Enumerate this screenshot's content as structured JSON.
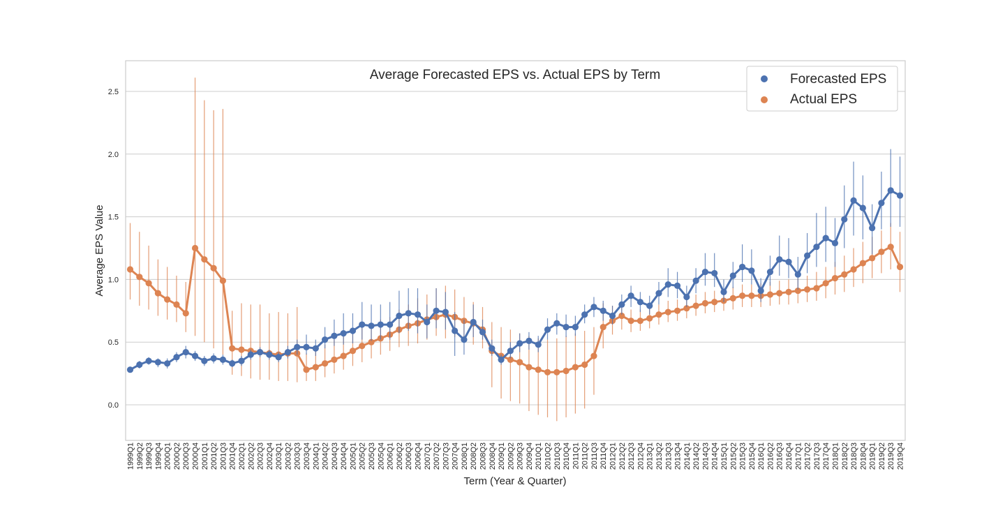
{
  "chart_data": {
    "type": "line",
    "title": "Average Forecasted EPS vs. Actual EPS by Term",
    "xlabel": "Term (Year & Quarter)",
    "ylabel": "Average EPS Value",
    "ylim": [
      -0.28,
      2.75
    ],
    "yticks": [
      0.0,
      0.5,
      1.0,
      1.5,
      2.0,
      2.5
    ],
    "ytick_labels": [
      "0.0",
      "0.5",
      "1.0",
      "1.5",
      "2.0",
      "2.5"
    ],
    "grid": true,
    "legend_position": "top-right",
    "categories": [
      "1999Q1",
      "1999Q2",
      "1999Q3",
      "1999Q4",
      "2000Q1",
      "2000Q2",
      "2000Q3",
      "2000Q4",
      "2001Q1",
      "2001Q2",
      "2001Q3",
      "2001Q4",
      "2002Q1",
      "2002Q2",
      "2002Q3",
      "2002Q4",
      "2003Q1",
      "2003Q2",
      "2003Q3",
      "2003Q4",
      "2004Q1",
      "2004Q2",
      "2004Q3",
      "2004Q4",
      "2005Q1",
      "2005Q2",
      "2005Q3",
      "2005Q4",
      "2006Q1",
      "2006Q2",
      "2006Q3",
      "2006Q4",
      "2007Q1",
      "2007Q2",
      "2007Q3",
      "2007Q4",
      "2008Q1",
      "2008Q2",
      "2008Q3",
      "2008Q4",
      "2009Q1",
      "2009Q2",
      "2009Q3",
      "2009Q4",
      "2010Q1",
      "2010Q2",
      "2010Q3",
      "2010Q4",
      "2011Q1",
      "2011Q2",
      "2011Q3",
      "2011Q4",
      "2012Q1",
      "2012Q2",
      "2012Q3",
      "2012Q4",
      "2013Q1",
      "2013Q2",
      "2013Q3",
      "2013Q4",
      "2014Q1",
      "2014Q2",
      "2014Q3",
      "2014Q4",
      "2015Q1",
      "2015Q2",
      "2015Q3",
      "2015Q4",
      "2016Q1",
      "2016Q2",
      "2016Q3",
      "2016Q4",
      "2017Q1",
      "2017Q2",
      "2017Q3",
      "2017Q4",
      "2018Q1",
      "2018Q2",
      "2018Q3",
      "2018Q4",
      "2019Q1",
      "2019Q2",
      "2019Q3",
      "2019Q4"
    ],
    "series": [
      {
        "name": "Forecasted EPS",
        "color": "#4c72b0",
        "values": [
          0.28,
          0.32,
          0.35,
          0.34,
          0.33,
          0.38,
          0.42,
          0.39,
          0.35,
          0.37,
          0.36,
          0.33,
          0.35,
          0.4,
          0.42,
          0.4,
          0.38,
          0.42,
          0.46,
          0.46,
          0.45,
          0.52,
          0.55,
          0.57,
          0.59,
          0.64,
          0.63,
          0.64,
          0.64,
          0.71,
          0.73,
          0.72,
          0.66,
          0.75,
          0.74,
          0.59,
          0.52,
          0.66,
          0.58,
          0.45,
          0.36,
          0.43,
          0.49,
          0.51,
          0.48,
          0.6,
          0.65,
          0.62,
          0.62,
          0.72,
          0.78,
          0.75,
          0.71,
          0.8,
          0.87,
          0.82,
          0.79,
          0.89,
          0.96,
          0.95,
          0.86,
          0.99,
          1.06,
          1.05,
          0.9,
          1.03,
          1.1,
          1.07,
          0.91,
          1.06,
          1.16,
          1.14,
          1.04,
          1.19,
          1.26,
          1.33,
          1.29,
          1.48,
          1.63,
          1.57,
          1.41,
          1.61,
          1.71,
          1.67
        ],
        "err_low": [
          0.26,
          0.29,
          0.32,
          0.3,
          0.29,
          0.34,
          0.37,
          0.35,
          0.31,
          0.33,
          0.32,
          0.3,
          0.31,
          0.36,
          0.38,
          0.36,
          0.34,
          0.37,
          0.4,
          0.4,
          0.39,
          0.45,
          0.47,
          0.48,
          0.49,
          0.52,
          0.51,
          0.52,
          0.52,
          0.57,
          0.59,
          0.57,
          0.53,
          0.61,
          0.6,
          0.39,
          0.4,
          0.54,
          0.52,
          0.39,
          0.32,
          0.37,
          0.42,
          0.44,
          0.42,
          0.52,
          0.56,
          0.54,
          0.55,
          0.65,
          0.7,
          0.67,
          0.64,
          0.72,
          0.78,
          0.74,
          0.72,
          0.8,
          0.86,
          0.85,
          0.78,
          0.89,
          0.95,
          0.94,
          0.82,
          0.93,
          0.98,
          0.96,
          0.82,
          0.95,
          1.03,
          1.01,
          0.92,
          1.05,
          1.1,
          1.14,
          1.1,
          1.25,
          1.35,
          1.32,
          1.2,
          1.4,
          1.42,
          1.42
        ],
        "err_high": [
          0.3,
          0.35,
          0.38,
          0.37,
          0.37,
          0.42,
          0.47,
          0.43,
          0.39,
          0.41,
          0.4,
          0.36,
          0.39,
          0.44,
          0.46,
          0.44,
          0.42,
          0.47,
          0.52,
          0.56,
          0.52,
          0.62,
          0.68,
          0.73,
          0.73,
          0.82,
          0.8,
          0.8,
          0.82,
          0.91,
          0.93,
          0.93,
          0.8,
          0.93,
          0.9,
          0.74,
          0.68,
          0.8,
          0.68,
          0.52,
          0.4,
          0.5,
          0.57,
          0.58,
          0.55,
          0.69,
          0.73,
          0.72,
          0.71,
          0.8,
          0.86,
          0.83,
          0.79,
          0.88,
          0.95,
          0.9,
          0.87,
          0.98,
          1.09,
          1.06,
          0.95,
          1.09,
          1.21,
          1.21,
          1.0,
          1.14,
          1.28,
          1.24,
          1.01,
          1.19,
          1.35,
          1.33,
          1.18,
          1.37,
          1.53,
          1.58,
          1.49,
          1.75,
          1.94,
          1.83,
          1.6,
          1.86,
          2.04,
          1.98
        ]
      },
      {
        "name": "Actual EPS",
        "color": "#dd8452",
        "values": [
          1.08,
          1.02,
          0.97,
          0.89,
          0.84,
          0.8,
          0.73,
          1.25,
          1.16,
          1.09,
          0.99,
          0.45,
          0.44,
          0.43,
          0.42,
          0.41,
          0.4,
          0.41,
          0.41,
          0.28,
          0.3,
          0.33,
          0.36,
          0.39,
          0.43,
          0.47,
          0.5,
          0.53,
          0.56,
          0.6,
          0.63,
          0.65,
          0.68,
          0.7,
          0.72,
          0.7,
          0.67,
          0.65,
          0.6,
          0.43,
          0.39,
          0.36,
          0.34,
          0.3,
          0.28,
          0.26,
          0.26,
          0.27,
          0.3,
          0.32,
          0.39,
          0.62,
          0.67,
          0.71,
          0.67,
          0.67,
          0.69,
          0.72,
          0.74,
          0.75,
          0.77,
          0.79,
          0.81,
          0.82,
          0.83,
          0.85,
          0.87,
          0.87,
          0.87,
          0.88,
          0.89,
          0.9,
          0.91,
          0.92,
          0.93,
          0.97,
          1.01,
          1.04,
          1.08,
          1.13,
          1.17,
          1.22,
          1.26,
          1.1
        ],
        "err_low": [
          0.84,
          0.79,
          0.76,
          0.71,
          0.68,
          0.66,
          0.58,
          0.55,
          0.5,
          0.45,
          0.4,
          0.24,
          0.23,
          0.21,
          0.2,
          0.2,
          0.19,
          0.19,
          0.18,
          0.19,
          0.19,
          0.22,
          0.25,
          0.28,
          0.31,
          0.34,
          0.37,
          0.4,
          0.43,
          0.46,
          0.47,
          0.49,
          0.52,
          0.55,
          0.53,
          0.54,
          0.51,
          0.48,
          0.45,
          0.14,
          0.05,
          0.03,
          0.01,
          -0.05,
          -0.08,
          -0.1,
          -0.13,
          -0.1,
          -0.07,
          -0.03,
          0.08,
          0.45,
          0.56,
          0.6,
          0.58,
          0.59,
          0.61,
          0.64,
          0.66,
          0.67,
          0.69,
          0.71,
          0.73,
          0.74,
          0.75,
          0.76,
          0.78,
          0.78,
          0.78,
          0.79,
          0.8,
          0.8,
          0.81,
          0.82,
          0.83,
          0.85,
          0.88,
          0.9,
          0.94,
          0.97,
          1.01,
          1.05,
          1.08,
          0.9
        ],
        "err_high": [
          1.45,
          1.38,
          1.27,
          1.16,
          1.1,
          1.03,
          0.98,
          2.61,
          2.43,
          2.35,
          2.36,
          0.75,
          0.81,
          0.8,
          0.8,
          0.73,
          0.74,
          0.73,
          0.78,
          0.41,
          0.44,
          0.48,
          0.52,
          0.56,
          0.59,
          0.62,
          0.65,
          0.68,
          0.7,
          0.76,
          0.8,
          0.85,
          0.88,
          0.93,
          0.95,
          0.92,
          0.86,
          0.82,
          0.78,
          0.66,
          0.62,
          0.6,
          0.57,
          0.55,
          0.53,
          0.52,
          0.53,
          0.55,
          0.57,
          0.59,
          0.62,
          0.81,
          0.79,
          0.82,
          0.76,
          0.76,
          0.78,
          0.8,
          0.83,
          0.84,
          0.86,
          0.88,
          0.9,
          0.91,
          0.92,
          0.94,
          0.96,
          0.96,
          0.97,
          0.98,
          0.99,
          1.0,
          1.01,
          1.03,
          1.06,
          1.1,
          1.14,
          1.19,
          1.25,
          1.3,
          1.34,
          1.39,
          1.45,
          1.38
        ]
      }
    ]
  }
}
